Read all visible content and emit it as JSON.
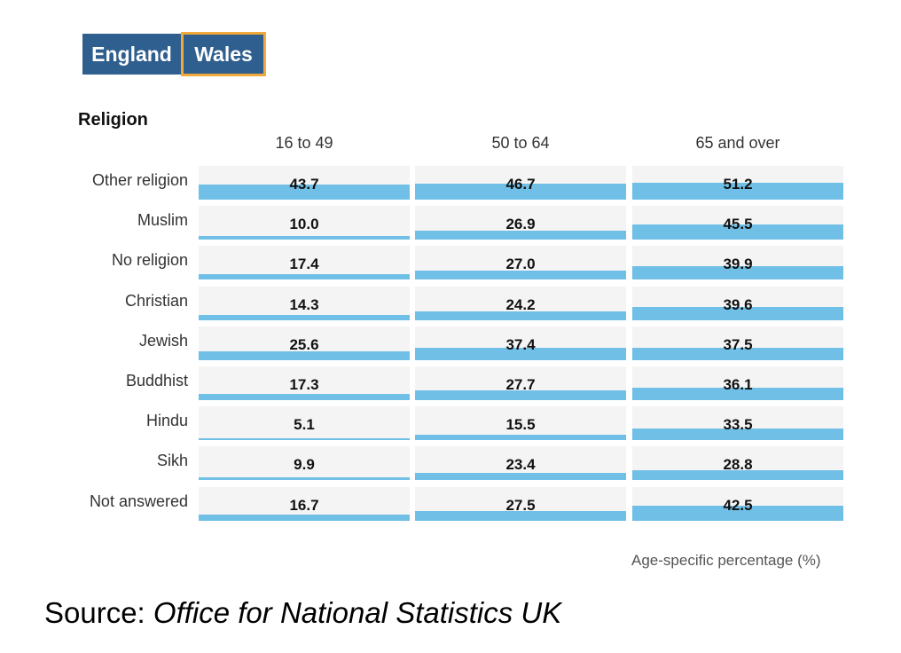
{
  "tabs": [
    {
      "label": "England",
      "selected": false
    },
    {
      "label": "Wales",
      "selected": true
    }
  ],
  "section_title": "Religion",
  "axis_label": "Age-specific percentage (%)",
  "source": {
    "prefix": "Source: ",
    "name": "Office for National Statistics UK"
  },
  "colors": {
    "tab": "#2f5f8f",
    "tab_selected_border": "#f2a93b",
    "bar": "#70bfe6",
    "cell_bg": "#f4f4f4"
  },
  "chart_data": {
    "type": "bar",
    "title": "Religion",
    "xlabel": "Age-specific percentage (%)",
    "ylabel": "",
    "xlim": [
      0,
      100
    ],
    "categories": [
      "Other religion",
      "Muslim",
      "No religion",
      "Christian",
      "Jewish",
      "Buddhist",
      "Hindu",
      "Sikh",
      "Not answered"
    ],
    "series": [
      {
        "name": "16 to 49",
        "values": [
          43.7,
          10.0,
          17.4,
          14.3,
          25.6,
          17.3,
          5.1,
          9.9,
          16.7
        ]
      },
      {
        "name": "50 to 64",
        "values": [
          46.7,
          26.9,
          27.0,
          24.2,
          37.4,
          27.7,
          15.5,
          23.4,
          27.5
        ]
      },
      {
        "name": "65 and over",
        "values": [
          51.2,
          45.5,
          39.9,
          39.6,
          37.5,
          36.1,
          33.5,
          28.8,
          42.5
        ]
      }
    ],
    "value_labels": [
      [
        "43.7",
        "10.0",
        "17.4",
        "14.3",
        "25.6",
        "17.3",
        "5.1",
        "9.9",
        "16.7"
      ],
      [
        "46.7",
        "26.9",
        "27.0",
        "24.2",
        "37.4",
        "27.7",
        "15.5",
        "23.4",
        "27.5"
      ],
      [
        "51.2",
        "45.5",
        "39.9",
        "39.6",
        "37.5",
        "36.1",
        "33.5",
        "28.8",
        "42.5"
      ]
    ]
  }
}
